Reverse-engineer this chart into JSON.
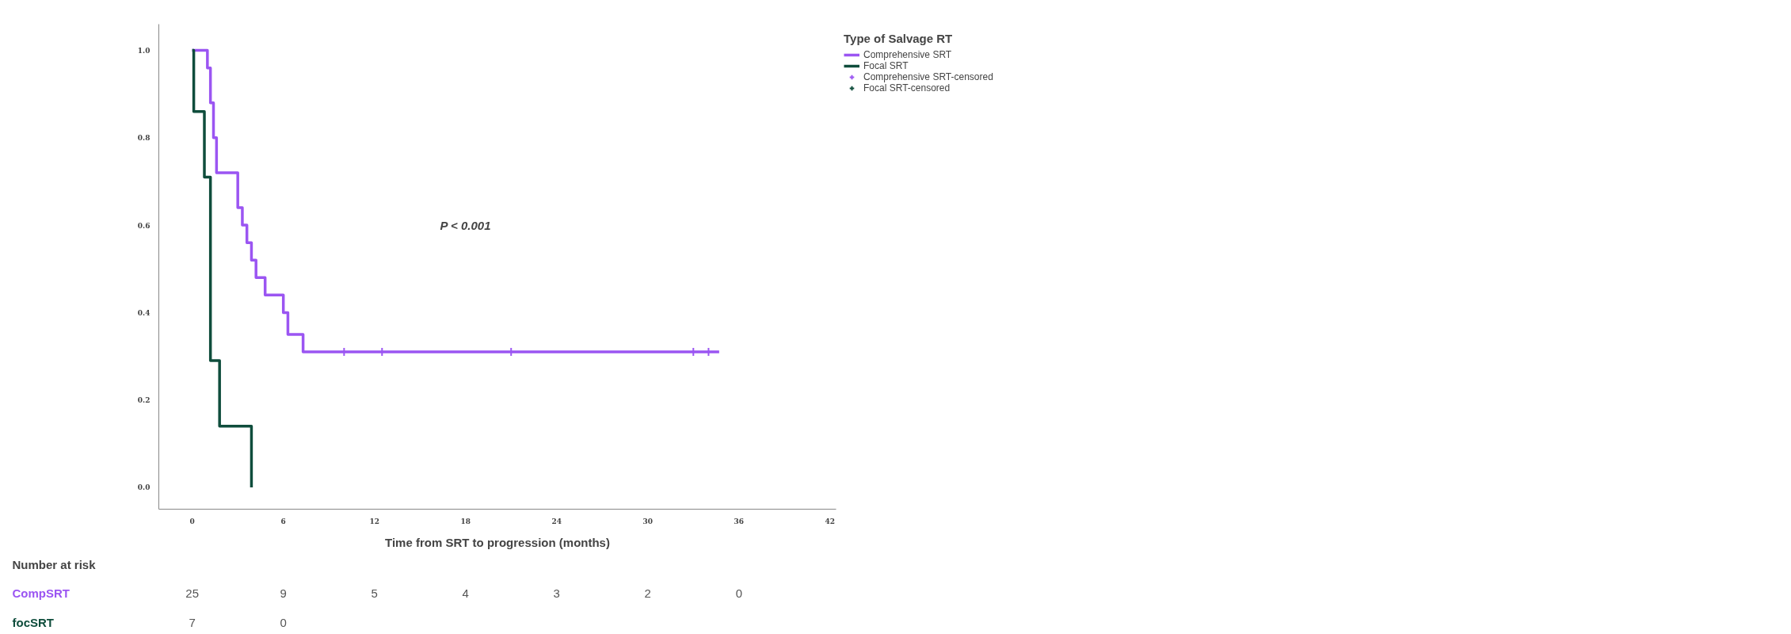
{
  "chart_data": {
    "type": "step",
    "xlabel": "Time from SRT to progression (months)",
    "legend_title": "Type of Salvage RT",
    "legend": "right",
    "grid": false,
    "line_style": "solid",
    "xlim": [
      -2.2,
      42.4
    ],
    "ylim": [
      -0.05,
      1.06
    ],
    "xticks": [
      0,
      6,
      12,
      18,
      24,
      30,
      36,
      42
    ],
    "yticks": [
      {
        "value": 0,
        "label": "0.0"
      },
      {
        "value": 0.2,
        "label": "0.2"
      },
      {
        "value": 0.4,
        "label": "0.4"
      },
      {
        "value": 0.6,
        "label": "0.6"
      },
      {
        "value": 0.8,
        "label": "0.8"
      },
      {
        "value": 1,
        "label": "1.0"
      }
    ],
    "series": [
      {
        "name": "Comprehensive SRT",
        "color": "#9b55f2",
        "x": [
          0,
          1.0,
          1.2,
          1.4,
          1.6,
          3.0,
          3.3,
          3.6,
          3.9,
          4.2,
          4.8,
          6.0,
          6.3,
          7.3,
          34.7
        ],
        "values": [
          1.0,
          0.96,
          0.88,
          0.8,
          0.72,
          0.64,
          0.6,
          0.56,
          0.52,
          0.48,
          0.44,
          0.4,
          0.35,
          0.31,
          0.31
        ]
      },
      {
        "name": "Focal SRT",
        "color": "#0f4d3c",
        "x": [
          0,
          0.1,
          0.8,
          1.2,
          1.8,
          3.9
        ],
        "values": [
          1.0,
          0.86,
          0.71,
          0.29,
          0.14,
          0.0
        ]
      },
      {
        "name": "Comprehensive SRT-censored",
        "type": "scatter",
        "marker": "cross",
        "color": "#9b55f2",
        "x": [
          10,
          12.5,
          21,
          33,
          34
        ],
        "values": [
          0.31,
          0.31,
          0.31,
          0.31,
          0.31
        ]
      },
      {
        "name": "Focal SRT-censored",
        "type": "scatter",
        "marker": "cross",
        "color": "#0f4d3c"
      }
    ],
    "annotations": [
      "P < 0.001",
      "Number at risk",
      "CompSRT",
      "focSRT",
      "25",
      "9",
      "5",
      "4",
      "3",
      "2",
      "0",
      "7",
      "0"
    ]
  }
}
